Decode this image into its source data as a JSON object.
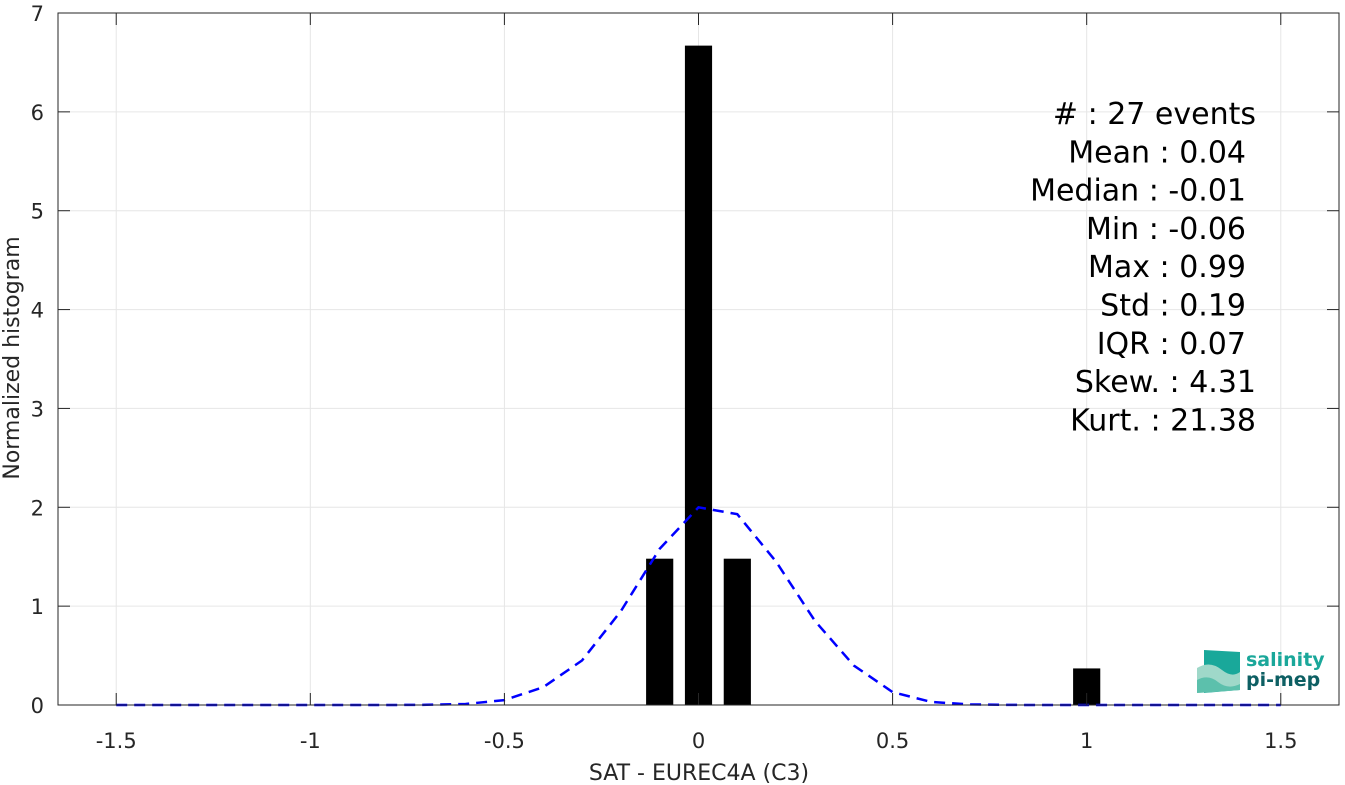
{
  "chart_data": {
    "type": "bar",
    "xlabel": "SAT - EUREC4A (C3)",
    "ylabel": "Normalized histogram",
    "xlim": [
      -1.65,
      1.65
    ],
    "ylim": [
      0,
      7
    ],
    "xticks": [
      -1.5,
      -1,
      -0.5,
      0,
      0.5,
      1,
      1.5
    ],
    "xtick_labels": [
      "-1.5",
      "-1",
      "-0.5",
      "0",
      "0.5",
      "1",
      "1.5"
    ],
    "yticks": [
      0,
      1,
      2,
      3,
      4,
      5,
      6,
      7
    ],
    "ytick_labels": [
      "0",
      "1",
      "2",
      "3",
      "4",
      "5",
      "6",
      "7"
    ],
    "grid": true,
    "bar_width": 0.07,
    "bars": [
      {
        "x": -0.1,
        "value": 1.48
      },
      {
        "x": 0.0,
        "value": 6.67
      },
      {
        "x": 0.1,
        "value": 1.48
      },
      {
        "x": 1.0,
        "value": 0.37
      }
    ],
    "series": [
      {
        "style": "dashed",
        "color": "#0000ff",
        "x": [
          -1.5,
          -1.4,
          -1.3,
          -1.2,
          -1.1,
          -1.0,
          -0.9,
          -0.8,
          -0.7,
          -0.6,
          -0.5,
          -0.4,
          -0.3,
          -0.2,
          -0.1,
          0.0,
          0.1,
          0.2,
          0.3,
          0.4,
          0.5,
          0.6,
          0.7,
          0.8,
          0.9,
          1.0,
          1.1,
          1.2,
          1.3,
          1.4,
          1.5
        ],
        "y": [
          0,
          0,
          0,
          0,
          0,
          0,
          0,
          0,
          0.002,
          0.01,
          0.05,
          0.18,
          0.45,
          0.95,
          1.58,
          2.0,
          1.93,
          1.45,
          0.85,
          0.4,
          0.13,
          0.03,
          0.006,
          0.001,
          0,
          0,
          0,
          0,
          0,
          0,
          0
        ]
      }
    ],
    "stats": [
      "#  : 27 events",
      "Mean : 0.04",
      "Median : -0.01",
      "Min : -0.06",
      "Max : 0.99",
      "Std : 0.19",
      "IQR : 0.07",
      "Skew. : 4.31",
      "Kurt. : 21.38"
    ],
    "colors": {
      "bars": "#000000",
      "fit_line": "#0000ff",
      "grid": "#e6e6e6",
      "axes": "#262626"
    }
  },
  "logo": {
    "line1": "salinity",
    "line2": "pi-mep"
  }
}
